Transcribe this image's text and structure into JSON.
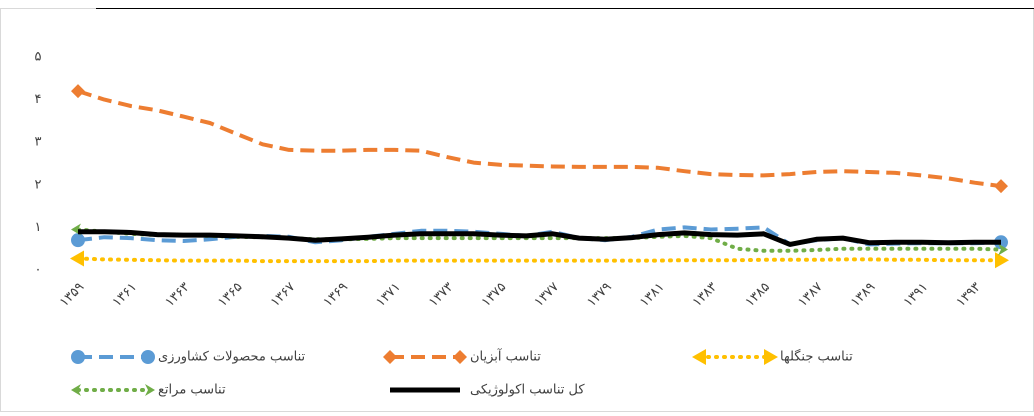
{
  "chart_data": {
    "type": "line",
    "categories": [
      "۱۳۵۹",
      null,
      "۱۳۶۱",
      null,
      "۱۳۶۳",
      null,
      "۱۳۶۵",
      null,
      "۱۳۶۷",
      null,
      "۱۳۶۹",
      null,
      "۱۳۷۱",
      null,
      "۱۳۷۳",
      null,
      "۱۳۷۵",
      null,
      "۱۳۷۷",
      null,
      "۱۳۷۹",
      null,
      "۱۳۸۱",
      null,
      "۱۳۸۳",
      null,
      "۱۳۸۵",
      null,
      "۱۳۸۷",
      null,
      "۱۳۸۹",
      null,
      "۱۳۹۱",
      null,
      "۱۳۹۳",
      null
    ],
    "ylim": [
      0,
      5
    ],
    "yticks": [
      {
        "value": 0,
        "label": "۰"
      },
      {
        "value": 1,
        "label": "۱"
      },
      {
        "value": 2,
        "label": "۲"
      },
      {
        "value": 3,
        "label": "۳"
      },
      {
        "value": 4,
        "label": "۴"
      },
      {
        "value": 5,
        "label": "۵"
      }
    ],
    "grid": false,
    "legend": "bottom",
    "series": [
      {
        "name": "تناسب محصولات کشاورزی",
        "color": "#5b9bd5",
        "style": "dashed",
        "marker": "circle",
        "values": [
          0.7,
          0.77,
          0.75,
          0.7,
          0.68,
          0.72,
          0.78,
          0.8,
          0.78,
          0.65,
          0.7,
          0.78,
          0.85,
          0.92,
          0.92,
          0.9,
          0.85,
          0.8,
          0.9,
          0.75,
          0.7,
          0.78,
          0.95,
          1.0,
          0.95,
          0.97,
          1.0,
          0.6,
          0.7,
          0.75,
          0.6,
          0.62,
          0.63,
          0.63,
          0.63,
          0.65
        ]
      },
      {
        "name": "تناسب  آبزیان",
        "color": "#ed7d31",
        "style": "dashed",
        "marker": "diamond",
        "values": [
          4.2,
          4.0,
          3.85,
          3.75,
          3.6,
          3.45,
          3.2,
          2.95,
          2.82,
          2.8,
          2.8,
          2.82,
          2.82,
          2.8,
          2.65,
          2.52,
          2.47,
          2.45,
          2.43,
          2.42,
          2.42,
          2.42,
          2.4,
          2.32,
          2.25,
          2.23,
          2.22,
          2.25,
          2.3,
          2.32,
          2.3,
          2.28,
          2.22,
          2.15,
          2.05,
          1.97
        ]
      },
      {
        "name": "تناسب  جنگلها",
        "color": "#ffc000",
        "style": "dotted",
        "marker": "triangle",
        "values": [
          0.27,
          0.25,
          0.24,
          0.23,
          0.22,
          0.22,
          0.22,
          0.21,
          0.21,
          0.21,
          0.21,
          0.21,
          0.22,
          0.22,
          0.22,
          0.22,
          0.22,
          0.22,
          0.22,
          0.22,
          0.22,
          0.22,
          0.22,
          0.23,
          0.23,
          0.23,
          0.24,
          0.24,
          0.24,
          0.25,
          0.25,
          0.24,
          0.24,
          0.23,
          0.23,
          0.23
        ]
      },
      {
        "name": "تناسب مراتع",
        "color": "#70ad47",
        "style": "dotted",
        "marker": "arrow",
        "values": [
          0.95,
          0.9,
          0.85,
          0.82,
          0.82,
          0.8,
          0.78,
          0.77,
          0.75,
          0.72,
          0.72,
          0.73,
          0.75,
          0.75,
          0.75,
          0.75,
          0.75,
          0.75,
          0.75,
          0.75,
          0.75,
          0.75,
          0.78,
          0.8,
          0.75,
          0.5,
          0.45,
          0.45,
          0.47,
          0.5,
          0.5,
          0.5,
          0.5,
          0.5,
          0.5,
          0.48
        ]
      },
      {
        "name": "کل تناسب اکولوژیکی",
        "color": "#000000",
        "style": "solid",
        "marker": "none",
        "values": [
          0.9,
          0.9,
          0.88,
          0.83,
          0.82,
          0.82,
          0.8,
          0.78,
          0.75,
          0.7,
          0.73,
          0.77,
          0.82,
          0.85,
          0.85,
          0.85,
          0.82,
          0.8,
          0.85,
          0.75,
          0.72,
          0.76,
          0.83,
          0.87,
          0.83,
          0.82,
          0.85,
          0.6,
          0.72,
          0.75,
          0.64,
          0.65,
          0.65,
          0.64,
          0.65,
          0.65
        ]
      }
    ]
  }
}
